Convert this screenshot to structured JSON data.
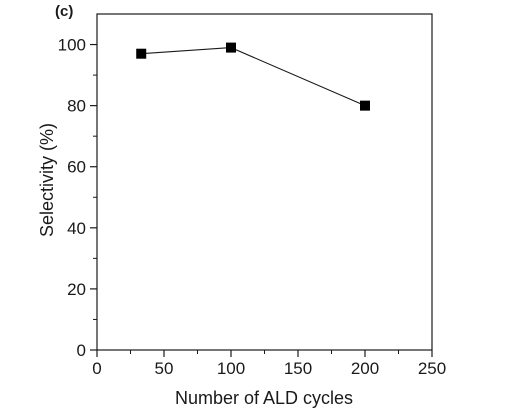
{
  "panel_label": "(c)",
  "chart_data": {
    "type": "line",
    "title": "",
    "xlabel": "Number of ALD cycles",
    "ylabel": "Selectivity (%)",
    "xlim": [
      0,
      250
    ],
    "ylim": [
      0,
      110
    ],
    "xticks": [
      0,
      50,
      100,
      150,
      200,
      250
    ],
    "yticks": [
      0,
      20,
      40,
      60,
      80,
      100
    ],
    "grid": false,
    "legend": "none",
    "marker": "square",
    "series": [
      {
        "x": [
          33,
          100,
          200
        ],
        "y": [
          97,
          99,
          80
        ]
      }
    ]
  },
  "colors": {
    "series_line": "#1a1a1a",
    "marker": "#000000",
    "axis": "#1a1a1a"
  }
}
